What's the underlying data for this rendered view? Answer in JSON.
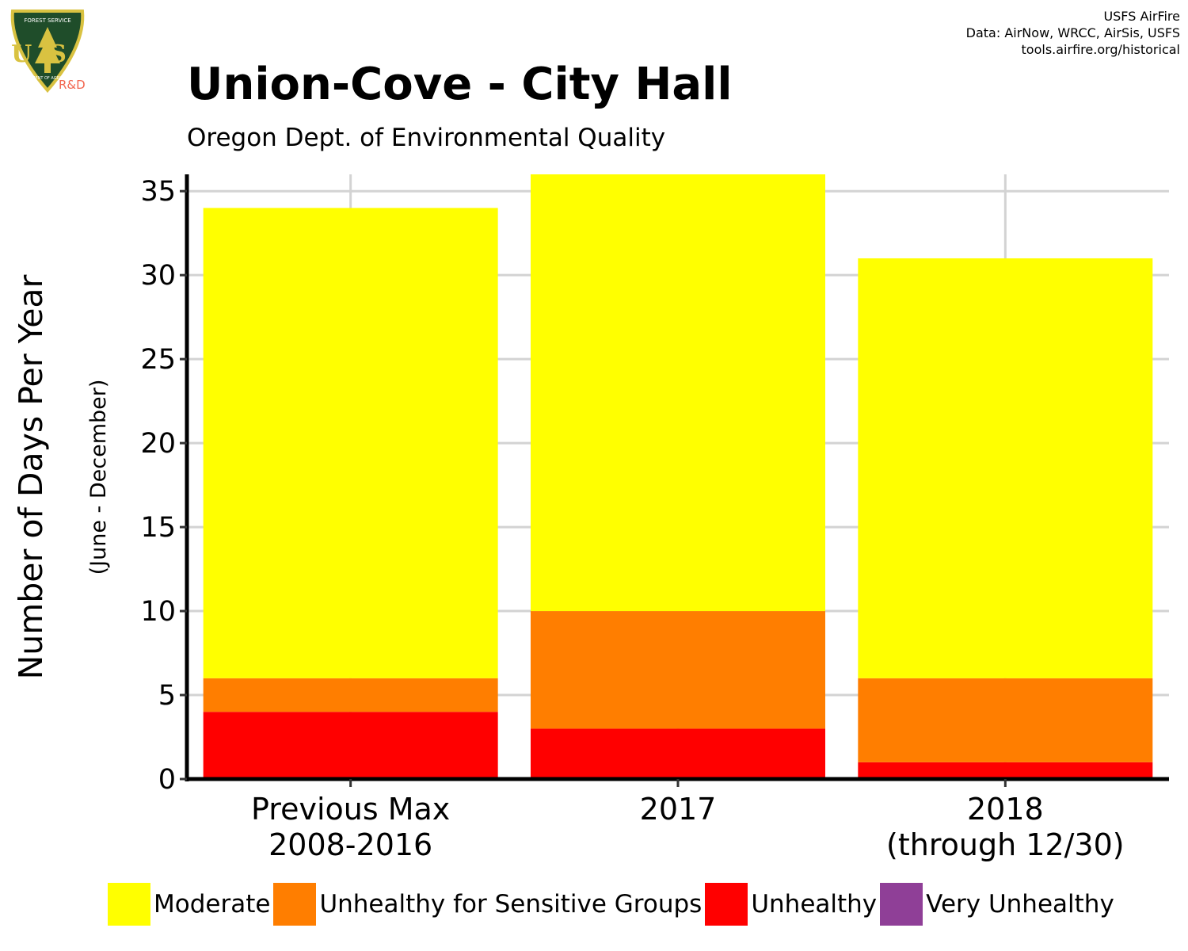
{
  "header": {
    "title": "Union-Cove - City Hall",
    "subtitle": "Oregon Dept. of Environmental Quality",
    "credits": [
      "USFS AirFire",
      "Data: AirNow, WRCC, AirSis, USFS",
      "tools.airfire.org/historical"
    ],
    "logo": {
      "icon": "usfs-shield-icon",
      "text": "US",
      "org_text": "FOREST SERVICE",
      "dept_text": "DEPARTMENT OF AGRICULTURE",
      "badge": "R&D"
    }
  },
  "chart_data": {
    "type": "bar",
    "stacked": true,
    "categories": [
      [
        "Previous Max",
        "2008-2016"
      ],
      [
        "2017"
      ],
      [
        "2018",
        "(through 12/30)"
      ]
    ],
    "series": [
      {
        "name": "Unhealthy",
        "color": "#ff0000",
        "values": [
          4,
          3,
          1
        ]
      },
      {
        "name": "Unhealthy for Sensitive Groups",
        "color": "#ff7e00",
        "values": [
          2,
          7,
          5
        ]
      },
      {
        "name": "Moderate",
        "color": "#ffff00",
        "values": [
          28,
          26,
          25
        ]
      },
      {
        "name": "Very Unhealthy",
        "color": "#8f3f97",
        "values": [
          0,
          0,
          0
        ]
      }
    ],
    "totals": [
      34,
      36,
      31
    ],
    "ylabel": "Number of Days Per Year",
    "ylabel_sub": "(June - December)",
    "ylim": [
      0,
      36
    ],
    "yticks": [
      0,
      5,
      10,
      15,
      20,
      25,
      30,
      35
    ],
    "grid": true,
    "legend_position": "bottom",
    "legend_order": [
      "Moderate",
      "Unhealthy for Sensitive Groups",
      "Unhealthy",
      "Very Unhealthy"
    ]
  }
}
